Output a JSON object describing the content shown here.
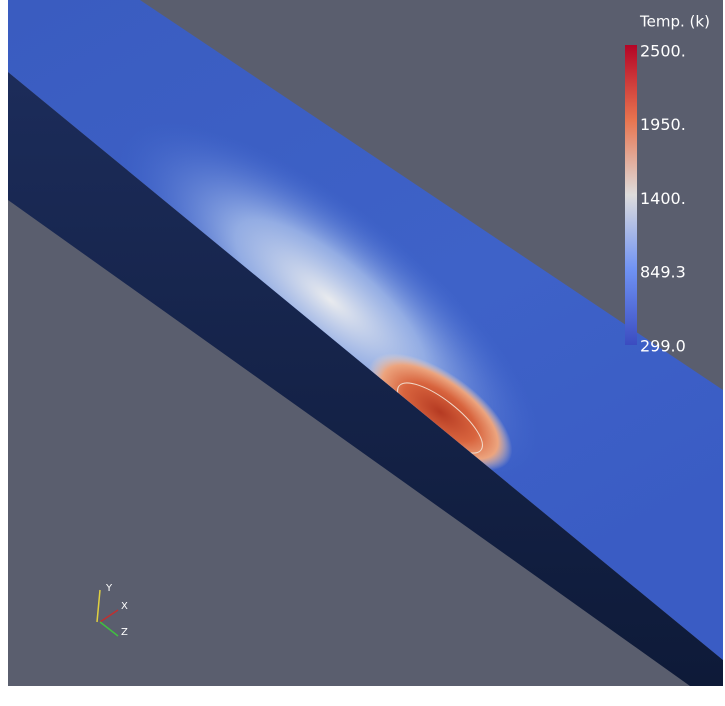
{
  "colorbar": {
    "title": "Temp. (k)",
    "ticks": [
      {
        "value": 2500,
        "label": "2500."
      },
      {
        "value": 1950,
        "label": "1950."
      },
      {
        "value": 1400,
        "label": "1400."
      },
      {
        "value": 849.3,
        "label": "849.3"
      },
      {
        "value": 299.0,
        "label": "299.0"
      }
    ]
  },
  "axes": {
    "labels": [
      "Y",
      "X",
      "Z"
    ]
  }
}
